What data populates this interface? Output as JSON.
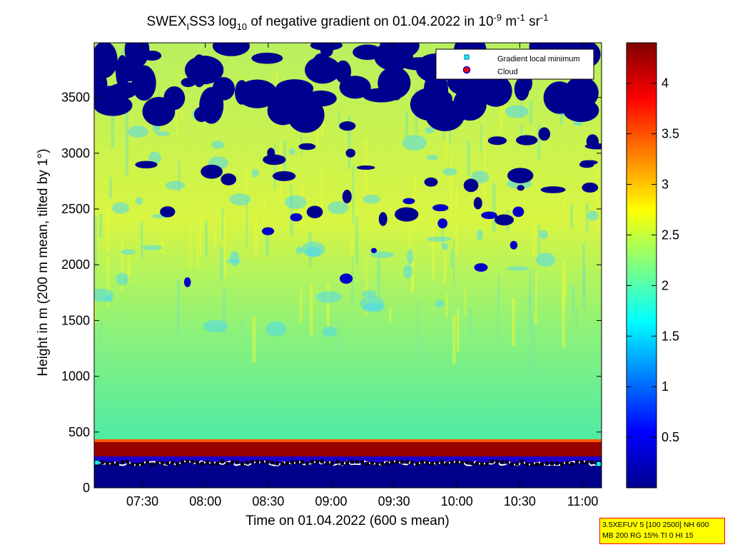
{
  "chart_data": {
    "type": "heatmap",
    "title": {
      "prefix": "SWEX",
      "sub1": "I",
      "mid1": "SS3 log",
      "sub2": "10",
      "mid2": " of negative gradient on 01.04.2022 in 10",
      "sup1": "-9",
      "mid3": " m",
      "sup2": "-1",
      "mid4": " sr",
      "sup3": "-1"
    },
    "xlabel": "Time on 01.04.2022 (600 s mean)",
    "ylabel": "Height in m (200 m mean, tilted by 1°)",
    "x_range": [
      "07:07",
      "11:09"
    ],
    "x_ticks": [
      "07:30",
      "08:00",
      "08:30",
      "09:00",
      "09:30",
      "10:00",
      "10:30",
      "11:00"
    ],
    "ylim": [
      0,
      3990
    ],
    "y_ticks": [
      0,
      500,
      1000,
      1500,
      2000,
      2500,
      3000,
      3500
    ],
    "colorbar": {
      "range": [
        0,
        4.4
      ],
      "ticks": [
        "0.5",
        "1",
        "1.5",
        "2",
        "2.5",
        "3",
        "3.5",
        "4"
      ],
      "colormap": "jet"
    },
    "legend": {
      "position": "top-right",
      "entries": [
        {
          "label": "Gradient local minimum",
          "marker": "square",
          "color": "#00ffff"
        },
        {
          "label": "Cloud",
          "marker": "circle",
          "color": "#ff0000"
        }
      ]
    },
    "layers": [
      {
        "name": "ground",
        "height_range_m": [
          0,
          230
        ],
        "value": 0.05
      },
      {
        "name": "boundary",
        "height_range_m": [
          230,
          410
        ],
        "value": 4.3
      },
      {
        "name": "lower",
        "height_range_m": [
          410,
          1500
        ],
        "value": 2.1
      },
      {
        "name": "middle",
        "height_range_m": [
          1500,
          2800
        ],
        "value": 2.5
      },
      {
        "name": "upper",
        "height_range_m": [
          2800,
          3990
        ],
        "value": 2.3
      }
    ],
    "gradient_minimum_height_m": 220
  },
  "info_box": {
    "line1": "3.5XEFUV 5 [100 2500] NH 600",
    "line2": "MB 200 RG 15% TI 0 HI 15"
  }
}
